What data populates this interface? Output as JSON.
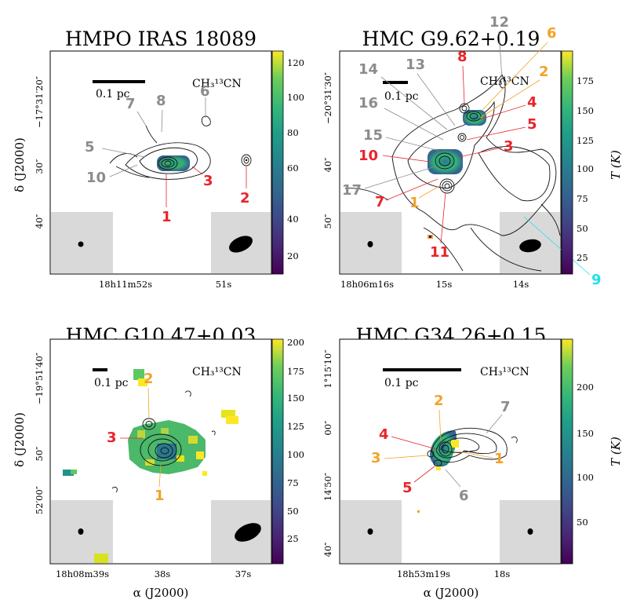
{
  "colors": {
    "red": "#e8242a",
    "orange": "#f2a22a",
    "gray": "#8c8c8c",
    "cyan": "#20e0e8",
    "beam_box": "#d9d9d9"
  },
  "panels": [
    {
      "id": "iras18089",
      "title": "HMPO IRAS 18089",
      "molecule": "CH₃¹³CN",
      "scalebar_label": "0.1 pc",
      "dec_ticks": [
        "−17°31′20″",
        "30″",
        "40″"
      ],
      "ra_ticks": [
        "18h11m52s",
        "51s"
      ],
      "ylabel": "δ (J2000)",
      "xlabel": "",
      "colorbar": {
        "ticks": [
          "120",
          "100",
          "80",
          "60",
          "40",
          "20"
        ],
        "label": ""
      },
      "sources": [
        {
          "label": "1",
          "color": "red"
        },
        {
          "label": "2",
          "color": "red"
        },
        {
          "label": "3",
          "color": "red"
        },
        {
          "label": "5",
          "color": "gray"
        },
        {
          "label": "6",
          "color": "gray"
        },
        {
          "label": "7",
          "color": "gray"
        },
        {
          "label": "8",
          "color": "gray"
        },
        {
          "label": "10",
          "color": "gray"
        }
      ]
    },
    {
      "id": "g962",
      "title": "HMC G9.62+0.19",
      "molecule": "CH₃¹³CN",
      "scalebar_label": "0.1 pc",
      "dec_ticks": [
        "−20°31′30″",
        "40″",
        "50″"
      ],
      "ra_ticks": [
        "18h06m16s",
        "15s",
        "14s"
      ],
      "ylabel": "",
      "xlabel": "",
      "colorbar": {
        "ticks": [
          "175",
          "150",
          "125",
          "100",
          "75",
          "50",
          "25"
        ],
        "label": "T (K)"
      },
      "sources": [
        {
          "label": "1",
          "color": "orange"
        },
        {
          "label": "2",
          "color": "orange"
        },
        {
          "label": "3",
          "color": "red"
        },
        {
          "label": "4",
          "color": "red"
        },
        {
          "label": "5",
          "color": "red"
        },
        {
          "label": "6",
          "color": "orange"
        },
        {
          "label": "7",
          "color": "red"
        },
        {
          "label": "8",
          "color": "red"
        },
        {
          "label": "9",
          "color": "cyan"
        },
        {
          "label": "10",
          "color": "red"
        },
        {
          "label": "11",
          "color": "red"
        },
        {
          "label": "12",
          "color": "gray"
        },
        {
          "label": "13",
          "color": "gray"
        },
        {
          "label": "14",
          "color": "gray"
        },
        {
          "label": "15",
          "color": "gray"
        },
        {
          "label": "16",
          "color": "gray"
        },
        {
          "label": "17",
          "color": "gray"
        }
      ]
    },
    {
      "id": "g1047",
      "title": "HMC G10.47+0.03",
      "molecule": "CH₃¹³CN",
      "scalebar_label": "0.1 pc",
      "dec_ticks": [
        "−19°51′40″",
        "50″",
        "52′00″"
      ],
      "ra_ticks": [
        "18h08m39s",
        "38s",
        "37s"
      ],
      "ylabel": "δ (J2000)",
      "xlabel": "α (J2000)",
      "colorbar": {
        "ticks": [
          "200",
          "175",
          "150",
          "125",
          "100",
          "75",
          "50",
          "25"
        ],
        "label": ""
      },
      "sources": [
        {
          "label": "1",
          "color": "orange"
        },
        {
          "label": "2",
          "color": "orange"
        },
        {
          "label": "3",
          "color": "red"
        }
      ]
    },
    {
      "id": "g3426",
      "title": "HMC G34.26+0.15",
      "molecule": "CH₃¹³CN",
      "scalebar_label": "0.1 pc",
      "dec_ticks": [
        "1°15′10″",
        "00″",
        "14′50″",
        "40″"
      ],
      "ra_ticks": [
        "18h53m19s",
        "18s"
      ],
      "ylabel": "",
      "xlabel": "α (J2000)",
      "colorbar": {
        "ticks": [
          "200",
          "150",
          "100",
          "50"
        ],
        "label": "T (K)"
      },
      "sources": [
        {
          "label": "1",
          "color": "orange"
        },
        {
          "label": "2",
          "color": "orange"
        },
        {
          "label": "3",
          "color": "orange"
        },
        {
          "label": "4",
          "color": "red"
        },
        {
          "label": "5",
          "color": "red"
        },
        {
          "label": "6",
          "color": "gray"
        },
        {
          "label": "7",
          "color": "gray"
        }
      ]
    }
  ]
}
